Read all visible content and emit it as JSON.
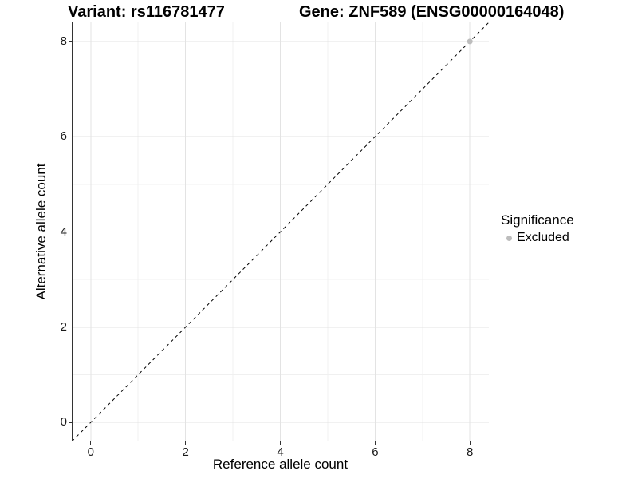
{
  "header": {
    "variant_title": "Variant: rs116781477",
    "gene_title": "Gene: ZNF589 (ENSG00000164048)"
  },
  "legend": {
    "title": "Significance",
    "items": [
      {
        "label": "Excluded",
        "color": "#bdbdbd"
      }
    ]
  },
  "chart_data": {
    "type": "scatter",
    "title": "Variant: rs116781477    Gene: ZNF589 (ENSG00000164048)",
    "xlabel": "Reference allele count",
    "ylabel": "Alternative allele count",
    "xlim": [
      -0.4,
      8.4
    ],
    "ylim": [
      -0.4,
      8.4
    ],
    "xticks": [
      0,
      2,
      4,
      6,
      8
    ],
    "yticks": [
      0,
      2,
      4,
      6,
      8
    ],
    "minor_xticks": [
      1,
      3,
      5,
      7
    ],
    "minor_yticks": [
      1,
      3,
      5,
      7
    ],
    "grid": "major+minor",
    "legend_position": "right",
    "series": [
      {
        "name": "Excluded",
        "marker": "circle",
        "color": "#bdbdbd",
        "points": [
          [
            8,
            8
          ]
        ]
      }
    ],
    "reference_line": {
      "slope": 1,
      "intercept": 0,
      "linetype": "dashed",
      "color": "#000000"
    },
    "colors": {
      "background": "#ffffff",
      "grid_major": "#e3e3e3",
      "grid_minor": "#f0f0f0",
      "axis_line": "#333333",
      "text": "#000000"
    }
  }
}
